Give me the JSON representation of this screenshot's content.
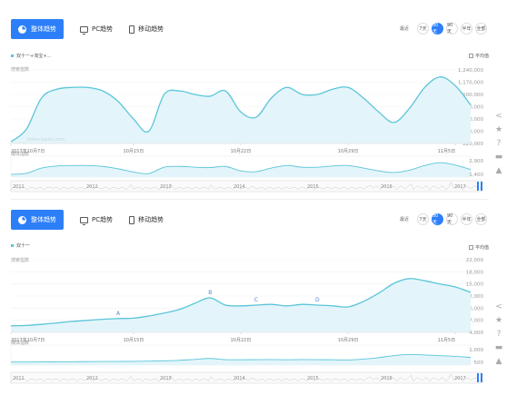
{
  "panels": [
    {
      "tabs": {
        "overall": "整体趋势",
        "pc": "PC趋势",
        "mobile": "移动趋势"
      },
      "ranges": {
        "label": "最近",
        "options": [
          "7天",
          "30天",
          "90天",
          "半年",
          "全部"
        ],
        "selected": "30天"
      },
      "legend": "双十一+淘宝+...",
      "avg_label": "平均值",
      "search_label": "搜索指数",
      "media_label": "媒体指数",
      "watermark": "index.baidu.com"
    },
    {
      "tabs": {
        "overall": "整体趋势",
        "pc": "PC趋势",
        "mobile": "移动趋势"
      },
      "ranges": {
        "label": "最近",
        "options": [
          "7天",
          "30天",
          "90天",
          "半年",
          "全部"
        ],
        "selected": "30天"
      },
      "legend": "双十一",
      "avg_label": "平均值",
      "search_label": "搜索指数",
      "media_label": "媒体指数"
    }
  ],
  "sidebar_icons": [
    "share-icon",
    "star-icon",
    "help-icon",
    "comment-icon",
    "top-icon"
  ],
  "colors": {
    "accent": "#2d7ff9",
    "line": "#5bc5d9",
    "fill": "#e3f5fa"
  },
  "chart_data": [
    {
      "type": "area",
      "x_labels": [
        "2017年10月7日",
        "10月15日",
        "10月22日",
        "10月29日",
        "11月5日"
      ],
      "x_label_index": [
        0,
        8,
        15,
        22,
        29
      ],
      "y_ticks": [
        "1,240,000",
        "1,170,000",
        "1,100,000",
        "1,030,000",
        "960,000",
        "890,000",
        "820,000"
      ],
      "ylim": [
        820000,
        1240000
      ],
      "values": [
        830000,
        900000,
        1080000,
        1130000,
        1140000,
        1140000,
        1120000,
        1060000,
        960000,
        890000,
        1100000,
        1120000,
        1100000,
        1090000,
        1120000,
        1000000,
        970000,
        1080000,
        1140000,
        1100000,
        1100000,
        1130000,
        1140000,
        1080000,
        1000000,
        940000,
        1020000,
        1140000,
        1200000,
        1150000,
        1040000
      ],
      "media_ticks": [
        "2,900",
        "1,400"
      ],
      "overview_years": [
        "2011",
        "2012",
        "2013",
        "2014",
        "2015",
        "2016",
        "2017"
      ]
    },
    {
      "type": "area",
      "x_labels": [
        "2017年10月7日",
        "10月15日",
        "10月22日",
        "10月29日",
        "11月5日"
      ],
      "x_label_index": [
        0,
        8,
        15,
        22,
        29
      ],
      "y_ticks": [
        "22,000",
        "18,000",
        "15,000",
        "12,000",
        "10,000",
        "7,000",
        "4,000"
      ],
      "ylim": [
        2000,
        22000
      ],
      "values": [
        3800,
        3900,
        4200,
        4600,
        5000,
        5300,
        5600,
        5800,
        5900,
        6500,
        7300,
        8300,
        10000,
        11500,
        9500,
        9300,
        9500,
        9700,
        9300,
        9700,
        9500,
        9300,
        9000,
        10500,
        12800,
        15500,
        16800,
        16200,
        15300,
        14500,
        13000
      ],
      "annotations": [
        {
          "label": "A",
          "index": 7
        },
        {
          "label": "B",
          "index": 13
        },
        {
          "label": "C",
          "index": 16
        },
        {
          "label": "D",
          "index": 20
        }
      ],
      "media_ticks": [
        "1,000",
        "500"
      ],
      "overview_years": [
        "2011",
        "2012",
        "2013",
        "2014",
        "2015",
        "2016",
        "2017"
      ]
    }
  ]
}
